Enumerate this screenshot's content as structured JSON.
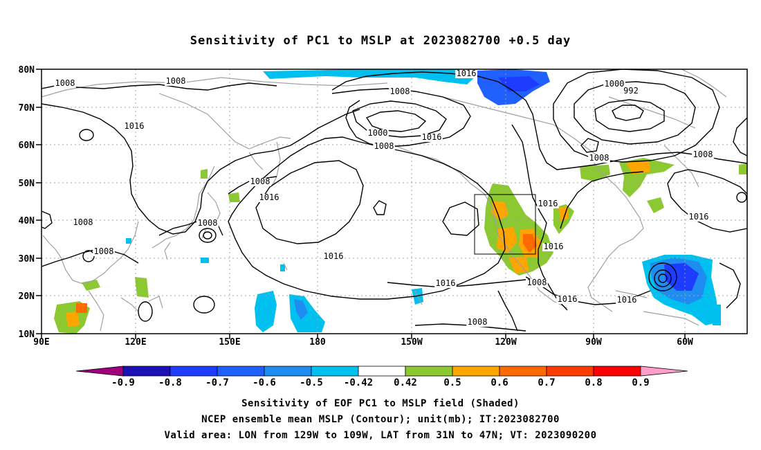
{
  "title": "Sensitivity of PC1 to MSLP at 2023082700 +0.5 day",
  "lat_labels": [
    "80N",
    "70N",
    "60N",
    "50N",
    "40N",
    "30N",
    "20N",
    "10N"
  ],
  "lon_labels": [
    "90E",
    "120E",
    "150E",
    "180",
    "150W",
    "120W",
    "90W",
    "60W"
  ],
  "colorbar": {
    "levels": [
      "-0.9",
      "-0.8",
      "-0.7",
      "-0.6",
      "-0.5",
      "-0.42",
      "0.42",
      "0.5",
      "0.6",
      "0.7",
      "0.8",
      "0.9"
    ],
    "colors": [
      "#a0007a",
      "#1d10b4",
      "#1e3cff",
      "#2060ff",
      "#1e8cf0",
      "#00c0f0",
      "#ffffff",
      "#8bc832",
      "#ffa500",
      "#ff6a00",
      "#ff3c00",
      "#ff0000",
      "#ff9fc8"
    ]
  },
  "contour_labels": [
    "1008",
    "1008",
    "1016",
    "1008",
    "1008",
    "1008",
    "1016",
    "1008",
    "1008",
    "1000",
    "1008",
    "1016",
    "1016",
    "1016",
    "1016",
    "1016",
    "1016",
    "1008",
    "1016",
    "1008",
    "1008",
    "1000",
    "992",
    "1008",
    "1016",
    "1016"
  ],
  "valid_box": {
    "lon_min": -129,
    "lon_max": -109,
    "lat_min": 31,
    "lat_max": 47
  },
  "footer": {
    "line1": "Sensitivity of EOF PC1 to MSLP field (Shaded)",
    "line2": "NCEP ensemble mean MSLP (Contour); unit(mb); IT:2023082700",
    "line3": "Valid area: LON from 129W to 109W, LAT from 31N to 47N; VT: 2023090200"
  },
  "colors": {
    "contour": "#000000",
    "coast": "#a0a0a0",
    "grid": "#a0a0a0"
  }
}
